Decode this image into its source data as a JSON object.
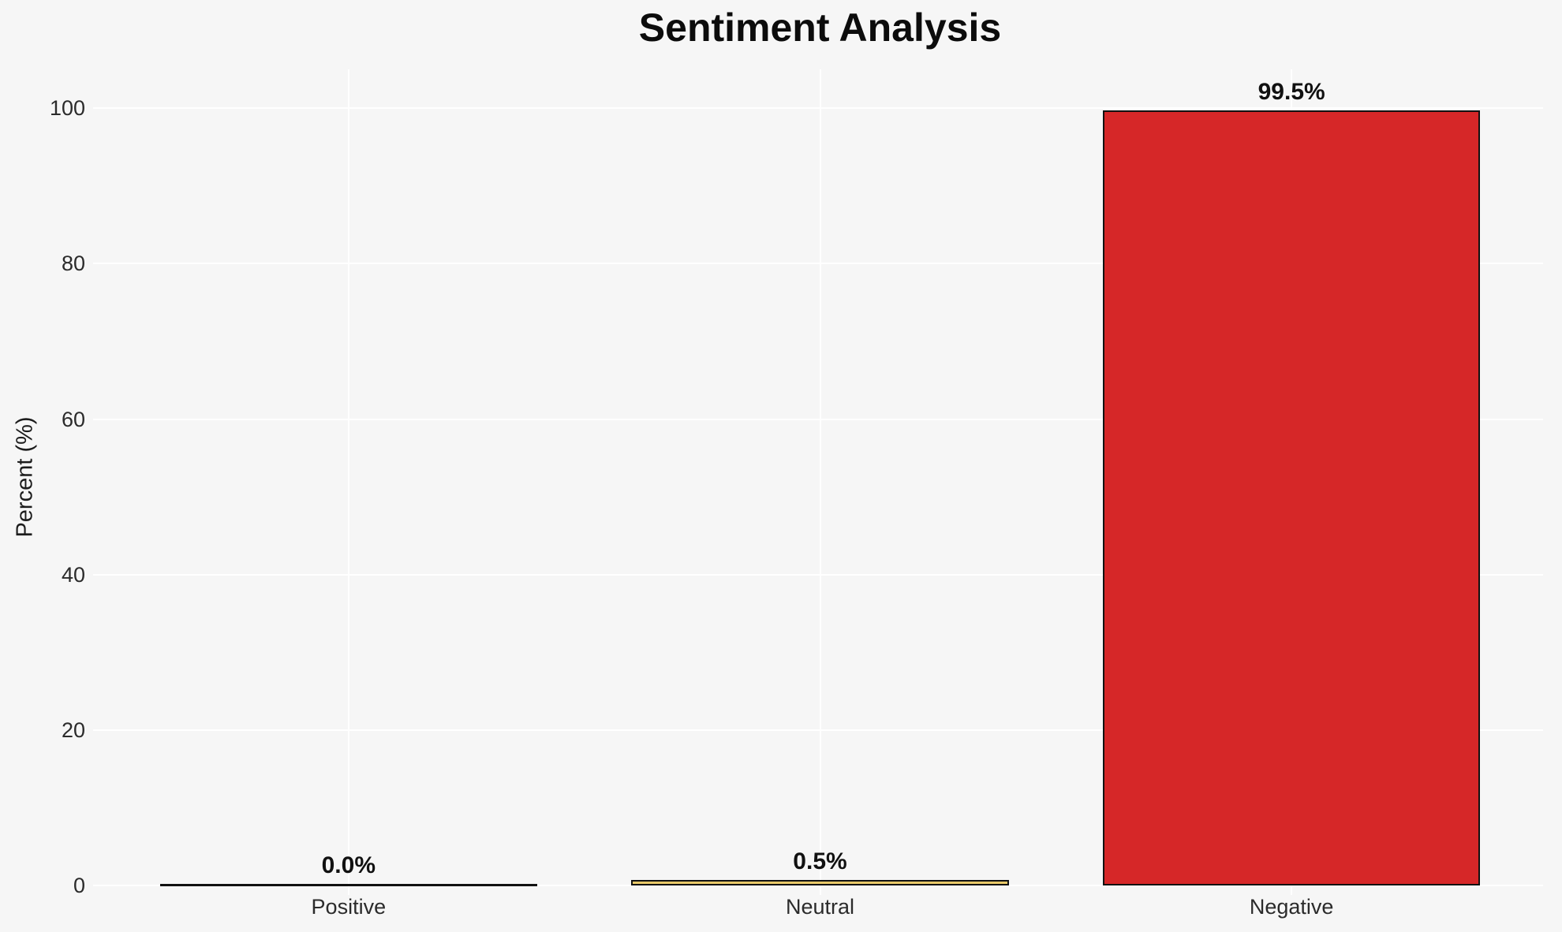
{
  "chart_data": {
    "type": "bar",
    "title": "Sentiment Analysis",
    "xlabel": "",
    "ylabel": "Percent (%)",
    "categories": [
      "Positive",
      "Neutral",
      "Negative"
    ],
    "values": [
      0.0,
      0.5,
      99.5
    ],
    "value_labels": [
      "0.0%",
      "0.5%",
      "99.5%"
    ],
    "bar_colors": [
      null,
      "#e8c868",
      "#d62728"
    ],
    "bar_edge_color": "#111111",
    "yticks": [
      0,
      20,
      40,
      60,
      80,
      100
    ],
    "ytick_labels": [
      "0",
      "20",
      "40",
      "60",
      "80",
      "100"
    ],
    "ylim": [
      0,
      105
    ],
    "grid": true,
    "grid_axes": "both",
    "grid_color": "#ffffff",
    "background_color": "#f6f6f6",
    "bar_width_fraction": 0.8,
    "legend": null
  }
}
